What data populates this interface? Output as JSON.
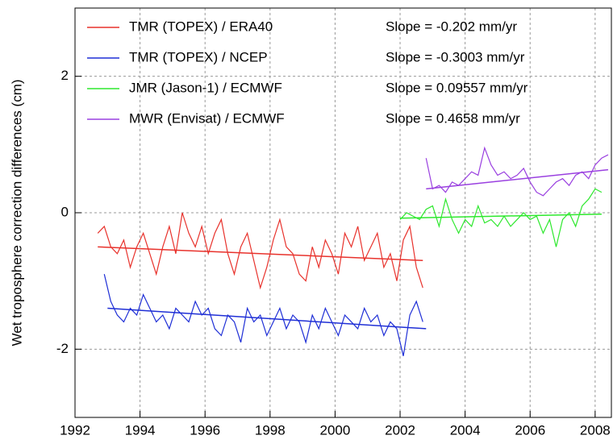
{
  "chart_data": {
    "type": "line",
    "ylabel": "Wet troposphere correction differences (cm)",
    "xlim": [
      1992,
      2008.5
    ],
    "ylim": [
      -3,
      3
    ],
    "xticks": [
      1992,
      1994,
      1996,
      1998,
      2000,
      2002,
      2004,
      2006,
      2008
    ],
    "yticks": [
      -2,
      0,
      2
    ],
    "grid": true,
    "legend": "top-left",
    "series": [
      {
        "name": "TMR (TOPEX) / ERA40",
        "annotation": "Slope = -0.202 mm/yr",
        "color": "#e8322c",
        "x": [
          1992.7,
          1992.9,
          1993.1,
          1993.3,
          1993.5,
          1993.7,
          1993.9,
          1994.1,
          1994.3,
          1994.5,
          1994.7,
          1994.9,
          1995.1,
          1995.3,
          1995.5,
          1995.7,
          1995.9,
          1996.1,
          1996.3,
          1996.5,
          1996.7,
          1996.9,
          1997.1,
          1997.3,
          1997.5,
          1997.7,
          1997.9,
          1998.1,
          1998.3,
          1998.5,
          1998.7,
          1998.9,
          1999.1,
          1999.3,
          1999.5,
          1999.7,
          1999.9,
          2000.1,
          2000.3,
          2000.5,
          2000.7,
          2000.9,
          2001.1,
          2001.3,
          2001.5,
          2001.7,
          2001.9,
          2002.1,
          2002.3,
          2002.5,
          2002.7
        ],
        "values": [
          -0.3,
          -0.2,
          -0.5,
          -0.6,
          -0.4,
          -0.8,
          -0.5,
          -0.3,
          -0.6,
          -0.9,
          -0.5,
          -0.2,
          -0.6,
          0.0,
          -0.3,
          -0.5,
          -0.2,
          -0.6,
          -0.3,
          -0.1,
          -0.6,
          -0.9,
          -0.5,
          -0.3,
          -0.7,
          -1.1,
          -0.8,
          -0.4,
          -0.1,
          -0.5,
          -0.6,
          -0.9,
          -1.0,
          -0.5,
          -0.8,
          -0.4,
          -0.6,
          -0.9,
          -0.3,
          -0.5,
          -0.2,
          -0.7,
          -0.5,
          -0.3,
          -0.8,
          -0.6,
          -1.0,
          -0.4,
          -0.2,
          -0.8,
          -1.1
        ],
        "trend_x": [
          1992.7,
          2002.7
        ],
        "trend": [
          -0.5,
          -0.7
        ]
      },
      {
        "name": "TMR (TOPEX) / NCEP",
        "annotation": "Slope = -0.3003 mm/yr",
        "color": "#1f2fd6",
        "x": [
          1992.9,
          1993.1,
          1993.3,
          1993.5,
          1993.7,
          1993.9,
          1994.1,
          1994.3,
          1994.5,
          1994.7,
          1994.9,
          1995.1,
          1995.3,
          1995.5,
          1995.7,
          1995.9,
          1996.1,
          1996.3,
          1996.5,
          1996.7,
          1996.9,
          1997.1,
          1997.3,
          1997.5,
          1997.7,
          1997.9,
          1998.1,
          1998.3,
          1998.5,
          1998.7,
          1998.9,
          1999.1,
          1999.3,
          1999.5,
          1999.7,
          1999.9,
          2000.1,
          2000.3,
          2000.5,
          2000.7,
          2000.9,
          2001.1,
          2001.3,
          2001.5,
          2001.7,
          2001.9,
          2002.1,
          2002.3,
          2002.5,
          2002.7
        ],
        "values": [
          -0.9,
          -1.3,
          -1.5,
          -1.6,
          -1.4,
          -1.5,
          -1.2,
          -1.4,
          -1.6,
          -1.5,
          -1.7,
          -1.4,
          -1.5,
          -1.6,
          -1.3,
          -1.5,
          -1.4,
          -1.7,
          -1.8,
          -1.5,
          -1.6,
          -1.9,
          -1.4,
          -1.6,
          -1.5,
          -1.8,
          -1.6,
          -1.4,
          -1.7,
          -1.5,
          -1.6,
          -1.9,
          -1.5,
          -1.7,
          -1.4,
          -1.6,
          -1.8,
          -1.5,
          -1.6,
          -1.7,
          -1.4,
          -1.6,
          -1.5,
          -1.8,
          -1.6,
          -1.7,
          -2.1,
          -1.5,
          -1.3,
          -1.6
        ],
        "trend_x": [
          1993,
          2002.8
        ],
        "trend": [
          -1.4,
          -1.7
        ]
      },
      {
        "name": "JMR (Jason-1) / ECMWF",
        "annotation": "Slope = 0.09557 mm/yr",
        "color": "#2ee82e",
        "x": [
          2002.0,
          2002.2,
          2002.4,
          2002.6,
          2002.8,
          2003.0,
          2003.2,
          2003.4,
          2003.6,
          2003.8,
          2004.0,
          2004.2,
          2004.4,
          2004.6,
          2004.8,
          2005.0,
          2005.2,
          2005.4,
          2005.6,
          2005.8,
          2006.0,
          2006.2,
          2006.4,
          2006.6,
          2006.8,
          2007.0,
          2007.2,
          2007.4,
          2007.6,
          2007.8,
          2008.0,
          2008.2
        ],
        "values": [
          -0.1,
          0.0,
          -0.05,
          -0.1,
          0.05,
          0.1,
          -0.2,
          0.2,
          -0.1,
          -0.3,
          -0.1,
          -0.2,
          0.1,
          -0.15,
          -0.1,
          -0.2,
          -0.05,
          -0.2,
          -0.1,
          0.0,
          -0.1,
          -0.05,
          -0.3,
          -0.1,
          -0.5,
          -0.1,
          0.0,
          -0.2,
          0.1,
          0.2,
          0.35,
          0.3
        ],
        "trend_x": [
          2002,
          2008.2
        ],
        "trend": [
          -0.08,
          -0.02
        ]
      },
      {
        "name": "MWR (Envisat) / ECMWF",
        "annotation": "Slope = 0.4658 mm/yr",
        "color": "#9a40e0",
        "x": [
          2002.8,
          2003.0,
          2003.2,
          2003.4,
          2003.6,
          2003.8,
          2004.0,
          2004.2,
          2004.4,
          2004.6,
          2004.8,
          2005.0,
          2005.2,
          2005.4,
          2005.6,
          2005.8,
          2006.0,
          2006.2,
          2006.4,
          2006.6,
          2006.8,
          2007.0,
          2007.2,
          2007.4,
          2007.6,
          2007.8,
          2008.0,
          2008.2,
          2008.4
        ],
        "values": [
          0.8,
          0.35,
          0.4,
          0.3,
          0.45,
          0.4,
          0.5,
          0.6,
          0.55,
          0.95,
          0.7,
          0.55,
          0.6,
          0.5,
          0.55,
          0.65,
          0.45,
          0.3,
          0.25,
          0.35,
          0.45,
          0.5,
          0.4,
          0.55,
          0.6,
          0.5,
          0.7,
          0.8,
          0.85
        ],
        "trend_x": [
          2002.8,
          2008.4
        ],
        "trend": [
          0.35,
          0.63
        ]
      }
    ]
  }
}
